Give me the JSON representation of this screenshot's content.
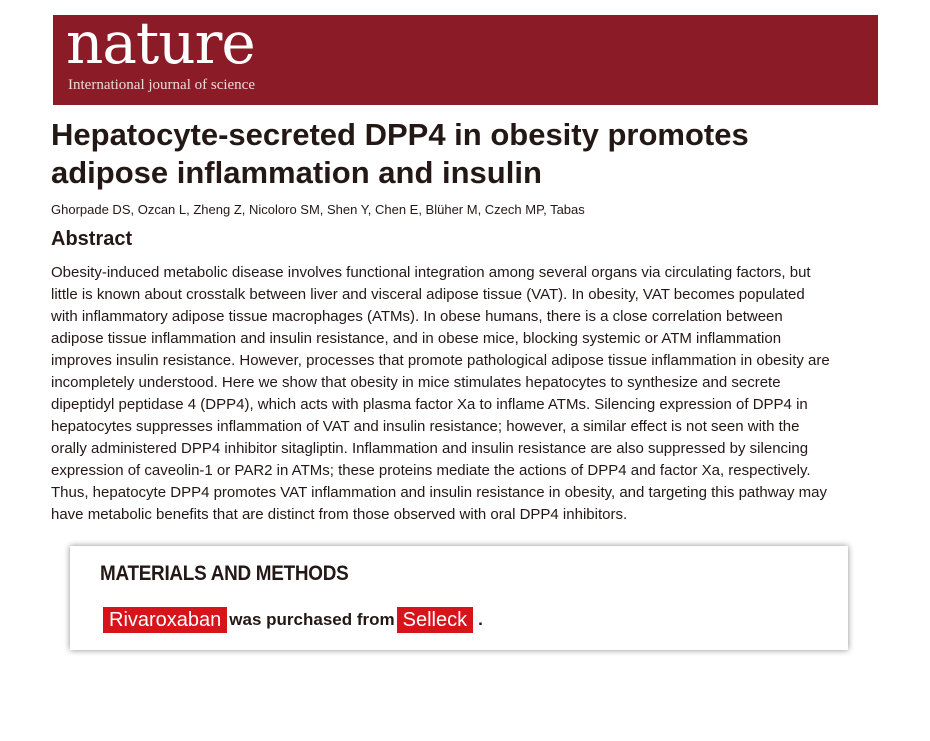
{
  "header": {
    "logo": "nature",
    "tagline": "International journal of science",
    "brand_color": "#8b1c27"
  },
  "article": {
    "title_lines": [
      "Hepatocyte-secreted DPP4 in obesity promotes",
      "adipose inflammation and insulin"
    ],
    "authors": "Ghorpade DS, Ozcan L, Zheng Z, Nicoloro SM, Shen Y, Chen E, Blüher M, Czech MP, Tabas",
    "abstract_heading": "Abstract",
    "abstract_lines": [
      "Obesity-induced metabolic disease involves functional integration among several organs via circulating factors, but",
      "little is known about crosstalk between liver and visceral adipose tissue (VAT). In obesity, VAT becomes populated",
      "with inflammatory adipose tissue macrophages (ATMs). In obese humans, there is a close correlation between",
      "adipose tissue inflammation and insulin resistance, and in obese mice, blocking systemic or ATM inflammation",
      "improves insulin resistance. However, processes that promote pathological adipose tissue inflammation in obesity are",
      "incompletely understood. Here we show that obesity in mice stimulates hepatocytes to synthesize and secrete",
      "dipeptidyl peptidase 4 (DPP4), which acts with plasma factor Xa to inflame ATMs. Silencing expression of DPP4 in",
      "hepatocytes suppresses inflammation of VAT and insulin resistance; however, a similar effect is not seen with the",
      "orally administered DPP4 inhibitor sitagliptin. Inflammation and insulin resistance are also suppressed by silencing",
      "expression of caveolin-1 or PAR2 in ATMs; these proteins mediate the actions of DPP4 and factor Xa, respectively.",
      "Thus, hepatocyte DPP4 promotes VAT inflammation and insulin resistance in obesity, and targeting this pathway may",
      "have metabolic benefits that are distinct from those observed with oral DPP4 inhibitors."
    ]
  },
  "overlay": {
    "heading": "MATERIALS AND METHODS",
    "compound": "Rivaroxaban",
    "middle": "was purchased from",
    "supplier": "Selleck",
    "end": ".",
    "highlight_color": "#d7141a"
  }
}
